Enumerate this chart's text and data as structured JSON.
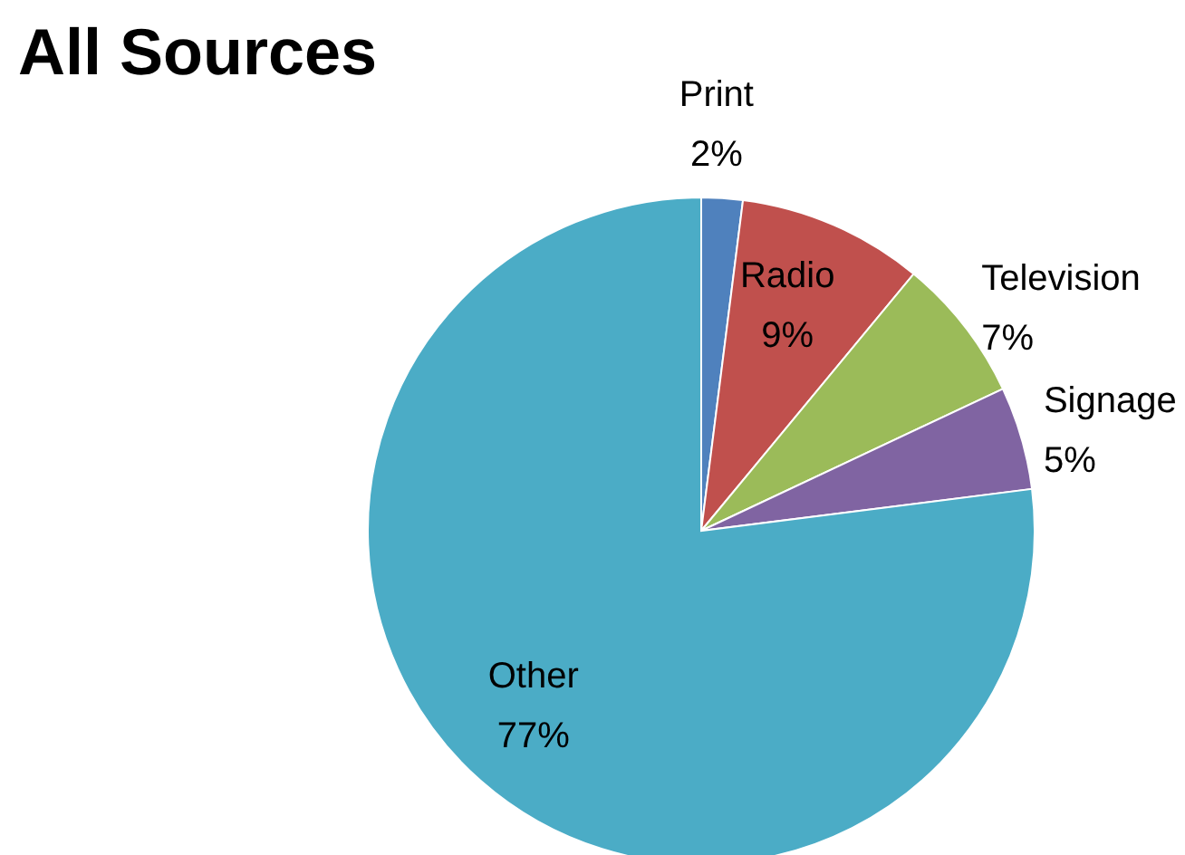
{
  "chart_data": {
    "type": "pie",
    "title": "All Sources",
    "categories": [
      "Print",
      "Radio",
      "Television",
      "Signage",
      "Other"
    ],
    "values": [
      2,
      9,
      7,
      5,
      77
    ],
    "value_labels": [
      "2%",
      "9%",
      "7%",
      "5%",
      "77%"
    ],
    "colors": [
      "#4f81bd",
      "#c0504d",
      "#9bbb59",
      "#8064a2",
      "#4bacc6"
    ],
    "legend": false
  }
}
